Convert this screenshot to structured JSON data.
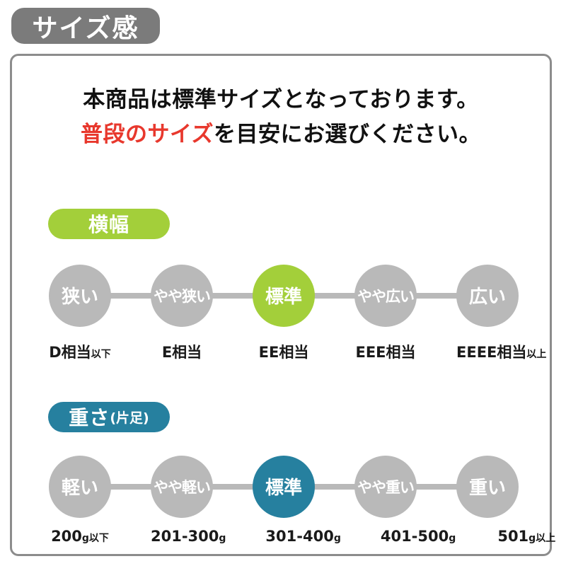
{
  "page_title": "サイズ感",
  "intro": {
    "line1": "本商品は標準サイズとなっております。",
    "line2_highlight": "普段のサイズ",
    "line2_rest": "を目安にお選びください。"
  },
  "colors": {
    "title_badge_gray": "#7b7b7b",
    "box_border_gray": "#8c8c8c",
    "inactive_circle_gray": "#b9b9b9",
    "width_accent_green": "#a3cf3a",
    "weight_accent_teal": "#26809f",
    "highlight_red": "#e8382d"
  },
  "sections": [
    {
      "id": "width",
      "badge": {
        "label": "横幅",
        "label_small": ""
      },
      "active_index": 2,
      "scale": [
        {
          "label": "狭い",
          "active": false
        },
        {
          "label": "やや狭い",
          "active": false
        },
        {
          "label": "標準",
          "active": true
        },
        {
          "label": "やや広い",
          "active": false
        },
        {
          "label": "広い",
          "active": false
        }
      ],
      "value_labels": [
        {
          "main": "D相当",
          "small": "以下"
        },
        {
          "main": "E相当",
          "small": ""
        },
        {
          "main": "EE相当",
          "small": ""
        },
        {
          "main": "EEE相当",
          "small": ""
        },
        {
          "main": "EEEE相当",
          "small": "以上"
        }
      ]
    },
    {
      "id": "weight",
      "badge": {
        "label": "重さ",
        "label_small": "(片足)"
      },
      "active_index": 2,
      "scale": [
        {
          "label": "軽い",
          "active": false
        },
        {
          "label": "やや軽い",
          "active": false
        },
        {
          "label": "標準",
          "active": true
        },
        {
          "label": "やや重い",
          "active": false
        },
        {
          "label": "重い",
          "active": false
        }
      ],
      "value_labels": [
        {
          "main": "200",
          "small": "g以下"
        },
        {
          "main": "201-300",
          "small": "g"
        },
        {
          "main": "301-400",
          "small": "g"
        },
        {
          "main": "401-500",
          "small": "g"
        },
        {
          "main": "501",
          "small": "g以上"
        }
      ]
    }
  ]
}
